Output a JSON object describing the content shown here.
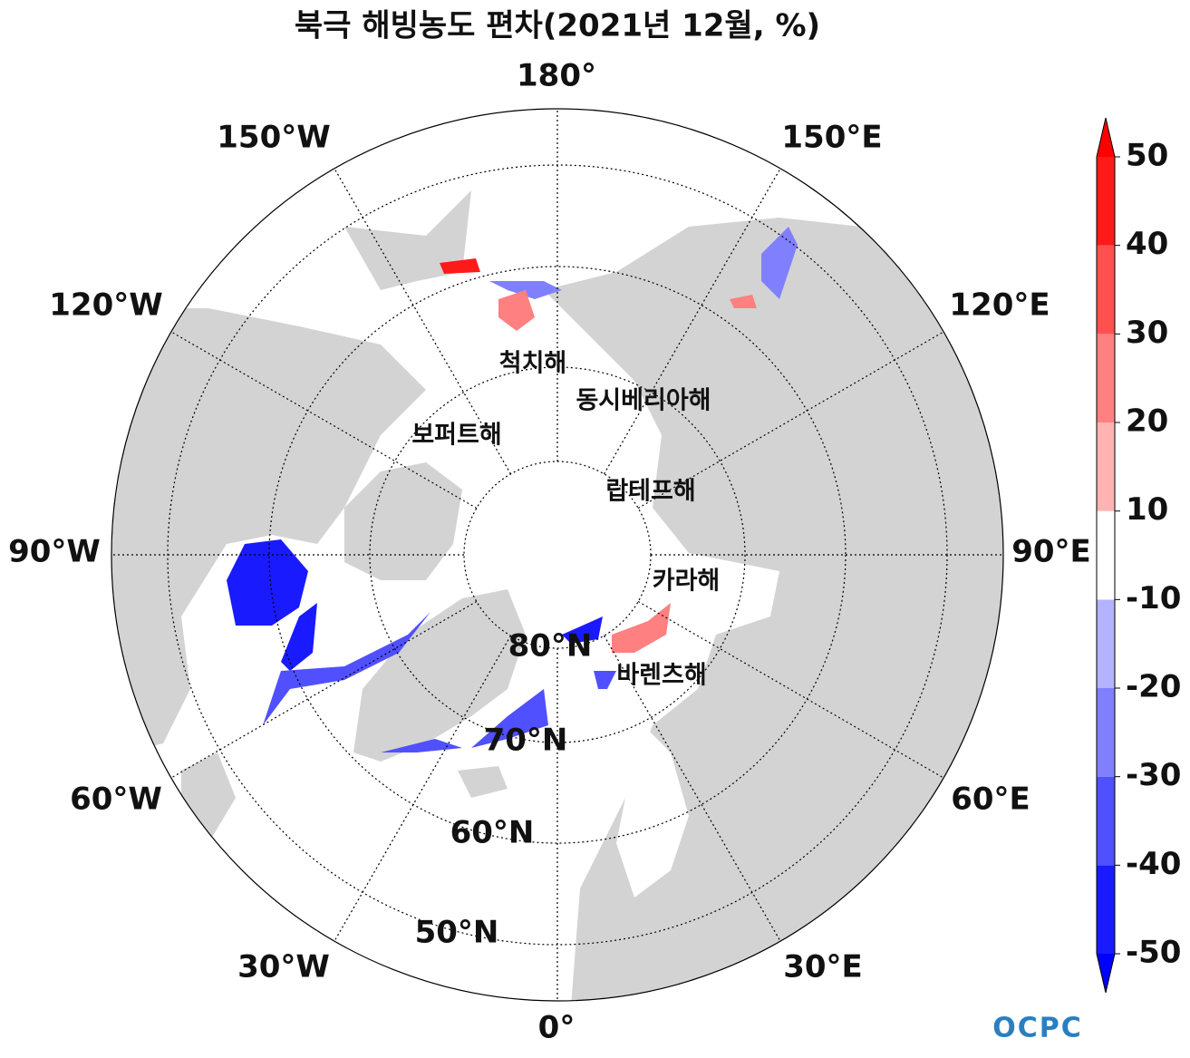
{
  "title": "북극 해빙농도 편차(2021년 12월, %)",
  "longitude_labels": [
    "180°",
    "150°E",
    "120°E",
    "90°E",
    "60°E",
    "30°E",
    "0°",
    "30°W",
    "60°W",
    "90°W",
    "120°W",
    "150°W"
  ],
  "latitude_labels": [
    "80°N",
    "70°N",
    "60°N",
    "50°N"
  ],
  "sea_labels": [
    "척치해",
    "동시베리아해",
    "보퍼트해",
    "랍테프해",
    "카라해",
    "바렌츠해"
  ],
  "colorbar": {
    "ticks": [
      -50,
      -40,
      -30,
      -20,
      -10,
      10,
      20,
      30,
      40,
      50
    ],
    "colors": [
      "#1a1aff",
      "#5050ff",
      "#8080ff",
      "#b3b3ff",
      "#ffffff",
      "#ffb3b3",
      "#ff8080",
      "#ff5050",
      "#ff1a1a"
    ],
    "extend_colors": [
      "#0000ff",
      "#ff0000"
    ]
  },
  "logo": "OCPC"
}
